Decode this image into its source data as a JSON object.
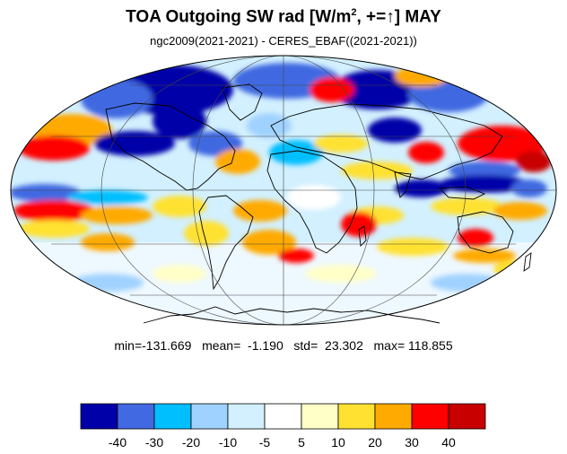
{
  "title": {
    "main": "TOA Outgoing SW rad [W/m",
    "sup": "2",
    "rest": ", +=↑] MAY"
  },
  "subtitle": "ngc2009(2021-2021) - CERES_EBAF((2021-2021))",
  "stats": {
    "line": "min=-131.669   mean=  -1.190   std=  23.302   max= 118.855",
    "min": -131.669,
    "mean": -1.19,
    "std": 23.302,
    "max": 118.855
  },
  "colorbar": {
    "colors": [
      "#0000a8",
      "#4169e1",
      "#00bfff",
      "#a0d2ff",
      "#d2f0ff",
      "#ffffff",
      "#ffffc8",
      "#ffe132",
      "#ffaa00",
      "#ff0000",
      "#c80000"
    ],
    "labels": [
      "-40",
      "-30",
      "-20",
      "-10",
      "-5",
      "5",
      "10",
      "20",
      "30",
      "40"
    ]
  },
  "map": {
    "projection": "mollweide",
    "field": "TOA outgoing shortwave radiation difference",
    "colors": {
      "deep_blue": "#0000a8",
      "blue": "#4169e1",
      "cyan": "#00bfff",
      "light_blue": "#a0d2ff",
      "pale_blue": "#d2f0ff",
      "white": "#ffffff",
      "pale_yellow": "#ffffc8",
      "yellow": "#ffe132",
      "orange": "#ffaa00",
      "red": "#ff0000",
      "dark_red": "#c80000"
    }
  }
}
